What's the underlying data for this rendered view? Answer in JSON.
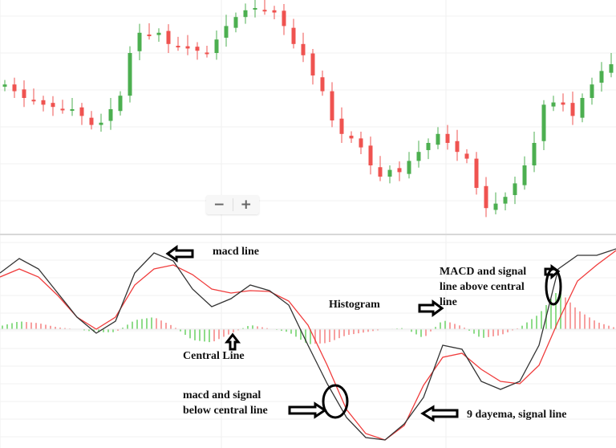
{
  "chart_data": [
    {
      "type": "candlestick",
      "title": "",
      "grid": true,
      "close": [
        66,
        63,
        60,
        59,
        57,
        56,
        55,
        55,
        52,
        48,
        49,
        55,
        61,
        80,
        89,
        88,
        89,
        84,
        83,
        82,
        81,
        80,
        86,
        92,
        96,
        99,
        100,
        99,
        98,
        92,
        84,
        79,
        70,
        63,
        50,
        44,
        42,
        38,
        30,
        25,
        28,
        27,
        32,
        36,
        40,
        44,
        40,
        36,
        33,
        20,
        11,
        13,
        16,
        22,
        30,
        40,
        57,
        58,
        57,
        52,
        60,
        66,
        72,
        75
      ],
      "colors": {
        "up": "#4caf50",
        "down": "#ef5350"
      }
    },
    {
      "type": "line",
      "title": "",
      "grid": true,
      "series": [
        {
          "key": "macd",
          "color": "#333333",
          "values": [
            3.5,
            4.4,
            3.75,
            2.25,
            0.75,
            -0.25,
            0.5,
            3.5,
            4.75,
            4.25,
            2.5,
            1.4,
            1.9,
            2.75,
            2.4,
            1.5,
            -1,
            -3.4,
            -5.5,
            -6.75,
            -6.9,
            -5.9,
            -4.25,
            -1,
            -1.25,
            -3.25,
            -3.75,
            -3.25,
            -1,
            3.75,
            4.6,
            4.6,
            5
          ]
        },
        {
          "key": "signal",
          "color": "#f03c3c",
          "values": [
            3.25,
            3.75,
            3.25,
            2.1,
            0.75,
            0,
            0.75,
            2.75,
            3.75,
            4,
            3.4,
            2.5,
            2.25,
            2.4,
            2.35,
            1.75,
            0.25,
            -2.25,
            -5,
            -6.5,
            -6.9,
            -6,
            -3.5,
            -1.75,
            -1.5,
            -2.5,
            -3.25,
            -3.4,
            -2.25,
            0.5,
            3,
            4,
            4.9
          ]
        }
      ],
      "histogram_colors": {
        "positive": "#8fdc8a",
        "negative": "#f7a0a0"
      }
    }
  ],
  "annotations": {
    "macd_line": "macd line",
    "histogram": "Histogram",
    "above_1": "MACD and signal",
    "above_2": "line above central",
    "above_3": "line",
    "central": "Central Line",
    "below_1": "macd and signal",
    "below_2": "below central line",
    "signal_line": "9 dayema, signal line"
  },
  "zoom_controls": {
    "minus": "−",
    "plus": "+"
  }
}
